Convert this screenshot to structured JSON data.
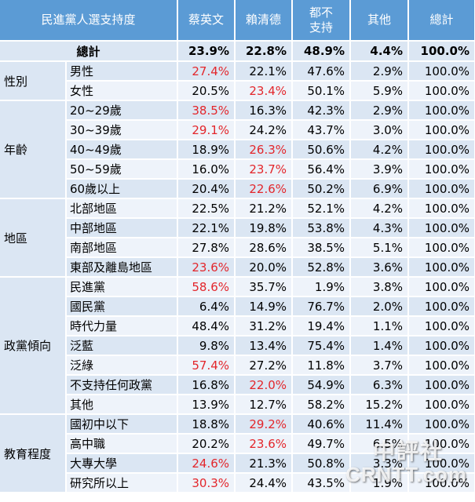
{
  "chart_data": {
    "type": "table",
    "header": [
      "民進黨人選支持度",
      "蔡英文",
      "賴清德",
      "都不\n支持",
      "其他",
      "總計"
    ],
    "total": {
      "label": "總計",
      "values": [
        "23.9%",
        "22.8%",
        "48.9%",
        "4.4%",
        "100.0%"
      ]
    },
    "groups": [
      {
        "label": "性別",
        "rows": [
          {
            "label": "男性",
            "values": [
              "27.4%",
              "22.1%",
              "47.6%",
              "2.9%",
              "100.0%"
            ],
            "highlight": 0
          },
          {
            "label": "女性",
            "values": [
              "20.5%",
              "23.4%",
              "50.1%",
              "5.9%",
              "100.0%"
            ],
            "highlight": 1
          }
        ]
      },
      {
        "label": "年齡",
        "rows": [
          {
            "label": "20~29歲",
            "values": [
              "38.5%",
              "16.3%",
              "42.3%",
              "2.9%",
              "100.0%"
            ],
            "highlight": 0
          },
          {
            "label": "30~39歲",
            "values": [
              "29.1%",
              "24.2%",
              "43.7%",
              "3.0%",
              "100.0%"
            ],
            "highlight": 0
          },
          {
            "label": "40~49歲",
            "values": [
              "18.9%",
              "26.3%",
              "50.6%",
              "4.2%",
              "100.0%"
            ],
            "highlight": 1
          },
          {
            "label": "50~59歲",
            "values": [
              "16.0%",
              "23.7%",
              "56.4%",
              "3.9%",
              "100.0%"
            ],
            "highlight": 1
          },
          {
            "label": "60歲以上",
            "values": [
              "20.4%",
              "22.6%",
              "50.2%",
              "6.9%",
              "100.0%"
            ],
            "highlight": 1
          }
        ]
      },
      {
        "label": "地區",
        "rows": [
          {
            "label": "北部地區",
            "values": [
              "22.5%",
              "21.2%",
              "52.1%",
              "4.2%",
              "100.0%"
            ],
            "highlight": -1
          },
          {
            "label": "中部地區",
            "values": [
              "22.1%",
              "19.8%",
              "53.8%",
              "4.3%",
              "100.0%"
            ],
            "highlight": -1
          },
          {
            "label": "南部地區",
            "values": [
              "27.8%",
              "28.6%",
              "38.5%",
              "5.1%",
              "100.0%"
            ],
            "highlight": -1
          },
          {
            "label": "東部及離島地區",
            "values": [
              "23.6%",
              "20.0%",
              "52.8%",
              "3.6%",
              "100.0%"
            ],
            "highlight": 0
          }
        ]
      },
      {
        "label": "政黨傾向",
        "rows": [
          {
            "label": "民進黨",
            "values": [
              "58.6%",
              "35.7%",
              "1.9%",
              "3.8%",
              "100.0%"
            ],
            "highlight": 0
          },
          {
            "label": "國民黨",
            "values": [
              "6.4%",
              "14.9%",
              "76.7%",
              "2.0%",
              "100.0%"
            ],
            "highlight": -1
          },
          {
            "label": "時代力量",
            "values": [
              "48.4%",
              "31.2%",
              "19.4%",
              "1.1%",
              "100.0%"
            ],
            "highlight": -1
          },
          {
            "label": "泛藍",
            "values": [
              "9.8%",
              "13.4%",
              "75.4%",
              "1.4%",
              "100.0%"
            ],
            "highlight": -1
          },
          {
            "label": "泛綠",
            "values": [
              "57.4%",
              "27.2%",
              "11.8%",
              "3.7%",
              "100.0%"
            ],
            "highlight": 0
          },
          {
            "label": "不支持任何政黨",
            "values": [
              "16.8%",
              "22.0%",
              "54.9%",
              "6.3%",
              "100.0%"
            ],
            "highlight": 1
          },
          {
            "label": "其他",
            "values": [
              "13.9%",
              "12.7%",
              "58.2%",
              "15.2%",
              "100.0%"
            ],
            "highlight": -1
          }
        ]
      },
      {
        "label": "教育程度",
        "rows": [
          {
            "label": "國初中以下",
            "values": [
              "18.8%",
              "29.2%",
              "40.6%",
              "11.4%",
              "100.0%"
            ],
            "highlight": 1
          },
          {
            "label": "高中職",
            "values": [
              "20.2%",
              "23.6%",
              "49.7%",
              "6.5%",
              "100.0%"
            ],
            "highlight": 1
          },
          {
            "label": "大專大學",
            "values": [
              "24.6%",
              "21.3%",
              "50.8%",
              "3.3%",
              "100.0%"
            ],
            "highlight": 0
          },
          {
            "label": "研究所以上",
            "values": [
              "30.3%",
              "24.4%",
              "43.5%",
              "1.9%",
              "100.0%"
            ],
            "highlight": 0
          }
        ]
      }
    ]
  },
  "colors": {
    "header_bg": "#5b9bd5",
    "band_dark": "#dbe6f3",
    "band_light": "#eef3fa",
    "highlight": "#e3262b"
  },
  "watermark": {
    "top": "中評社",
    "bottom": "CRNTT.com"
  }
}
